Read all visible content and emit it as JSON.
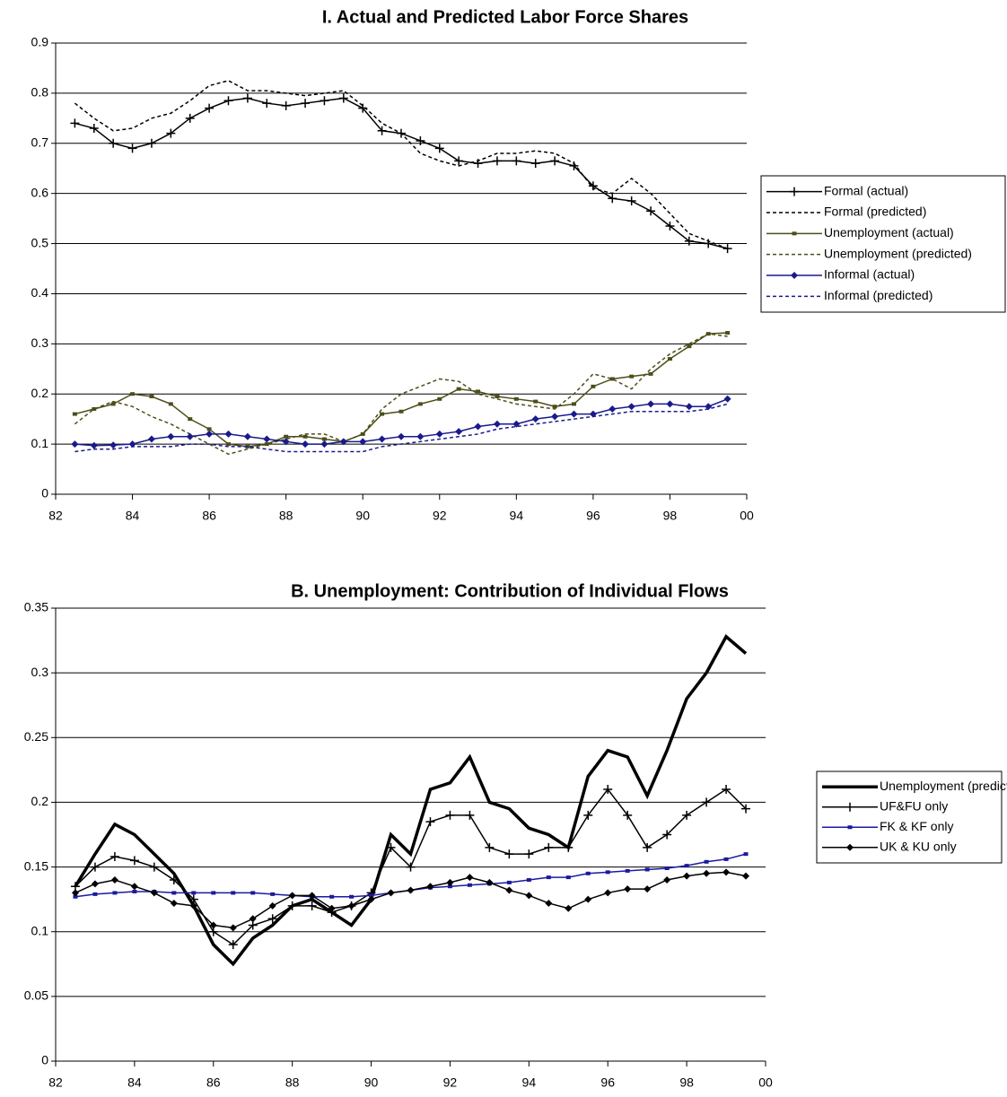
{
  "chart_data": [
    {
      "type": "line",
      "title": "I. Actual and Predicted Labor Force Shares",
      "x": [
        82.5,
        83,
        83.5,
        84,
        84.5,
        85,
        85.5,
        86,
        86.5,
        87,
        87.5,
        88,
        88.5,
        89,
        89.5,
        90,
        90.5,
        91,
        91.5,
        92,
        92.5,
        93,
        93.5,
        94,
        94.5,
        95,
        95.5,
        96,
        96.5,
        97,
        97.5,
        98,
        98.5,
        99,
        99.5
      ],
      "xlim": [
        82,
        100
      ],
      "xticks": [
        82,
        84,
        86,
        88,
        90,
        92,
        94,
        96,
        98,
        {
          "value": 100,
          "label": "00"
        }
      ],
      "ylim": [
        0,
        0.9
      ],
      "yticks": [
        0,
        0.1,
        0.2,
        0.3,
        0.4,
        0.5,
        0.6,
        0.7,
        0.8,
        0.9
      ],
      "grid": true,
      "legend": "right",
      "series": [
        {
          "name": "Formal (actual)",
          "color": "#000000",
          "dashed": false,
          "marker": "plus",
          "values": [
            0.74,
            0.73,
            0.7,
            0.69,
            0.7,
            0.72,
            0.75,
            0.77,
            0.785,
            0.79,
            0.78,
            0.775,
            0.78,
            0.785,
            0.79,
            0.77,
            0.725,
            0.72,
            0.705,
            0.69,
            0.665,
            0.66,
            0.665,
            0.665,
            0.66,
            0.665,
            0.655,
            0.615,
            0.59,
            0.585,
            0.565,
            0.535,
            0.505,
            0.5,
            0.49
          ]
        },
        {
          "name": "Formal (predicted)",
          "color": "#000000",
          "dashed": true,
          "marker": "none",
          "values": [
            0.78,
            0.75,
            0.725,
            0.73,
            0.75,
            0.76,
            0.785,
            0.815,
            0.825,
            0.805,
            0.805,
            0.8,
            0.795,
            0.8,
            0.805,
            0.775,
            0.74,
            0.72,
            0.68,
            0.665,
            0.655,
            0.665,
            0.68,
            0.68,
            0.685,
            0.68,
            0.66,
            0.61,
            0.6,
            0.63,
            0.6,
            0.56,
            0.52,
            0.505,
            0.49
          ]
        },
        {
          "name": "Unemployment (actual)",
          "color": "#4d4d19",
          "dashed": false,
          "marker": "square",
          "values": [
            0.16,
            0.17,
            0.18,
            0.2,
            0.195,
            0.18,
            0.15,
            0.13,
            0.1,
            0.095,
            0.1,
            0.115,
            0.115,
            0.11,
            0.105,
            0.12,
            0.16,
            0.165,
            0.18,
            0.19,
            0.21,
            0.205,
            0.195,
            0.19,
            0.185,
            0.175,
            0.18,
            0.215,
            0.23,
            0.235,
            0.24,
            0.27,
            0.295,
            0.32,
            0.322
          ]
        },
        {
          "name": "Unemployment (predicted)",
          "color": "#4d4d19",
          "dashed": true,
          "marker": "none",
          "values": [
            0.14,
            0.17,
            0.185,
            0.175,
            0.155,
            0.14,
            0.12,
            0.1,
            0.08,
            0.09,
            0.1,
            0.11,
            0.12,
            0.12,
            0.105,
            0.12,
            0.17,
            0.2,
            0.215,
            0.23,
            0.225,
            0.2,
            0.19,
            0.18,
            0.175,
            0.17,
            0.2,
            0.24,
            0.23,
            0.21,
            0.25,
            0.28,
            0.3,
            0.32,
            0.315
          ]
        },
        {
          "name": "Informal (actual)",
          "color": "#1a1a8c",
          "dashed": false,
          "marker": "diamond",
          "values": [
            0.1,
            0.097,
            0.098,
            0.1,
            0.11,
            0.115,
            0.115,
            0.12,
            0.12,
            0.115,
            0.11,
            0.105,
            0.1,
            0.1,
            0.105,
            0.105,
            0.11,
            0.115,
            0.115,
            0.12,
            0.125,
            0.135,
            0.14,
            0.14,
            0.15,
            0.155,
            0.16,
            0.16,
            0.17,
            0.175,
            0.18,
            0.18,
            0.175,
            0.175,
            0.19
          ]
        },
        {
          "name": "Informal (predicted)",
          "color": "#1a1a8c",
          "dashed": true,
          "marker": "none",
          "values": [
            0.085,
            0.09,
            0.09,
            0.095,
            0.095,
            0.095,
            0.1,
            0.1,
            0.095,
            0.095,
            0.09,
            0.085,
            0.085,
            0.085,
            0.085,
            0.085,
            0.095,
            0.1,
            0.105,
            0.11,
            0.115,
            0.12,
            0.13,
            0.135,
            0.14,
            0.145,
            0.15,
            0.155,
            0.16,
            0.165,
            0.165,
            0.165,
            0.165,
            0.17,
            0.18
          ]
        }
      ]
    },
    {
      "type": "line",
      "title": "B. Unemployment: Contribution of Individual Flows",
      "x": [
        82.5,
        83,
        83.5,
        84,
        84.5,
        85,
        85.5,
        86,
        86.5,
        87,
        87.5,
        88,
        88.5,
        89,
        89.5,
        90,
        90.5,
        91,
        91.5,
        92,
        92.5,
        93,
        93.5,
        94,
        94.5,
        95,
        95.5,
        96,
        96.5,
        97,
        97.5,
        98,
        98.5,
        99,
        99.5
      ],
      "xlim": [
        82,
        100
      ],
      "xticks": [
        82,
        84,
        86,
        88,
        90,
        92,
        94,
        96,
        98,
        {
          "value": 100,
          "label": "00"
        }
      ],
      "ylim": [
        0,
        0.35
      ],
      "yticks": [
        0,
        0.05,
        0.1,
        0.15,
        0.2,
        0.25,
        0.3,
        0.35
      ],
      "grid": true,
      "legend": "right",
      "series": [
        {
          "name": "Unemployment (predicted)",
          "color": "#000000",
          "dashed": false,
          "marker": "none",
          "width": 3.5,
          "values": [
            0.135,
            0.16,
            0.183,
            0.175,
            0.16,
            0.145,
            0.12,
            0.09,
            0.075,
            0.095,
            0.105,
            0.12,
            0.125,
            0.115,
            0.105,
            0.125,
            0.175,
            0.16,
            0.21,
            0.215,
            0.235,
            0.2,
            0.195,
            0.18,
            0.175,
            0.165,
            0.22,
            0.24,
            0.235,
            0.205,
            0.24,
            0.28,
            0.3,
            0.328,
            0.315
          ]
        },
        {
          "name": "UF&FU only",
          "color": "#000000",
          "dashed": false,
          "marker": "plus",
          "values": [
            0.135,
            0.15,
            0.158,
            0.155,
            0.15,
            0.14,
            0.125,
            0.1,
            0.09,
            0.105,
            0.11,
            0.12,
            0.12,
            0.115,
            0.12,
            0.13,
            0.165,
            0.15,
            0.185,
            0.19,
            0.19,
            0.165,
            0.16,
            0.16,
            0.165,
            0.165,
            0.19,
            0.21,
            0.19,
            0.165,
            0.175,
            0.19,
            0.2,
            0.21,
            0.195
          ]
        },
        {
          "name": "FK & KF only",
          "color": "#1a1aa0",
          "dashed": false,
          "marker": "square",
          "values": [
            0.127,
            0.129,
            0.13,
            0.131,
            0.131,
            0.13,
            0.13,
            0.13,
            0.13,
            0.13,
            0.129,
            0.128,
            0.127,
            0.127,
            0.127,
            0.128,
            0.13,
            0.132,
            0.134,
            0.135,
            0.136,
            0.137,
            0.138,
            0.14,
            0.142,
            0.142,
            0.145,
            0.146,
            0.147,
            0.148,
            0.149,
            0.151,
            0.154,
            0.156,
            0.16
          ]
        },
        {
          "name": "UK & KU only",
          "color": "#000000",
          "dashed": false,
          "marker": "diamond",
          "values": [
            0.13,
            0.137,
            0.14,
            0.135,
            0.13,
            0.122,
            0.12,
            0.105,
            0.103,
            0.11,
            0.12,
            0.128,
            0.128,
            0.118,
            0.12,
            0.125,
            0.13,
            0.132,
            0.135,
            0.138,
            0.142,
            0.138,
            0.132,
            0.128,
            0.122,
            0.118,
            0.125,
            0.13,
            0.133,
            0.133,
            0.14,
            0.143,
            0.145,
            0.146,
            0.143
          ]
        }
      ]
    }
  ]
}
